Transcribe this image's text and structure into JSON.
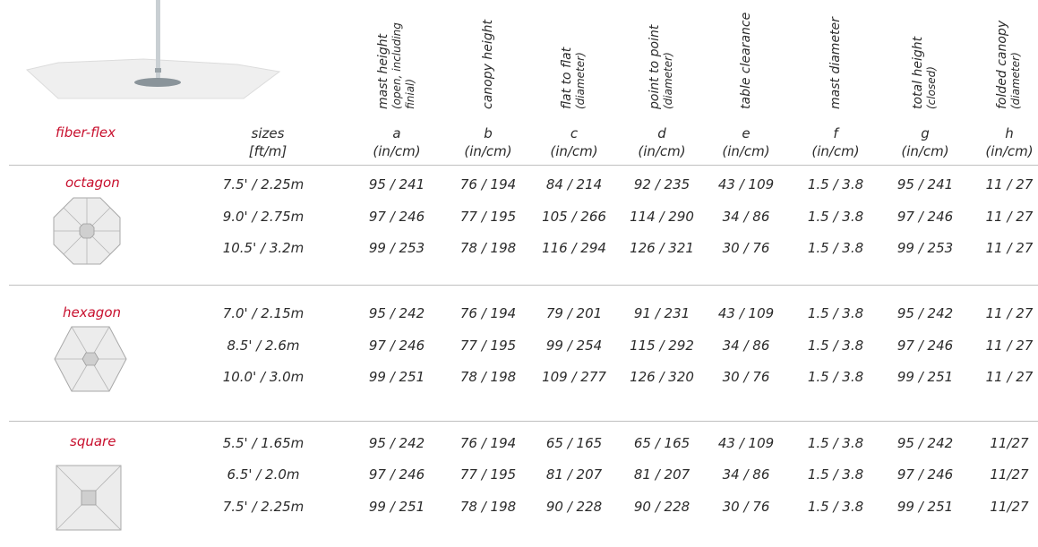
{
  "brand": "fiber-flex",
  "sizes_header": {
    "line1": "sizes",
    "line2": "[ft/m]"
  },
  "columns": [
    {
      "letter": "a",
      "unit": "(in/cm)",
      "name": "mast height",
      "sub1": "(open, including",
      "sub2": "finial)"
    },
    {
      "letter": "b",
      "unit": "(in/cm)",
      "name": "canopy height",
      "sub1": "",
      "sub2": ""
    },
    {
      "letter": "c",
      "unit": "(in/cm)",
      "name": "flat to flat",
      "sub1": "(diameter)",
      "sub2": ""
    },
    {
      "letter": "d",
      "unit": "(in/cm)",
      "name": "point to point",
      "sub1": "(diameter)",
      "sub2": ""
    },
    {
      "letter": "e",
      "unit": "(in/cm)",
      "name": "table clearance",
      "sub1": "",
      "sub2": ""
    },
    {
      "letter": "f",
      "unit": "(in/cm)",
      "name": "mast diameter",
      "sub1": "",
      "sub2": ""
    },
    {
      "letter": "g",
      "unit": "(in/cm)",
      "name": "total height",
      "sub1": "(closed)",
      "sub2": ""
    },
    {
      "letter": "h",
      "unit": "(in/cm)",
      "name": "folded canopy",
      "sub1": "(diameter)",
      "sub2": ""
    }
  ],
  "groups": [
    {
      "name": "octagon",
      "rows": [
        {
          "size": "7.5' / 2.25m",
          "values": [
            "95 / 241",
            "76 / 194",
            "84 / 214",
            "92 / 235",
            "43 / 109",
            "1.5 / 3.8",
            "95 / 241",
            "11 / 27"
          ]
        },
        {
          "size": "9.0' / 2.75m",
          "values": [
            "97 / 246",
            "77 / 195",
            "105 / 266",
            "114 / 290",
            "34 / 86",
            "1.5 / 3.8",
            "97 / 246",
            "11 / 27"
          ]
        },
        {
          "size": "10.5' / 3.2m",
          "values": [
            "99 / 253",
            "78 / 198",
            "116 / 294",
            "126 / 321",
            "30 / 76",
            "1.5 / 3.8",
            "99 / 253",
            "11 / 27"
          ]
        }
      ]
    },
    {
      "name": "hexagon",
      "rows": [
        {
          "size": "7.0' / 2.15m",
          "values": [
            "95 / 242",
            "76 / 194",
            "79 / 201",
            "91 / 231",
            "43 / 109",
            "1.5 / 3.8",
            "95 / 242",
            "11 / 27"
          ]
        },
        {
          "size": "8.5' / 2.6m",
          "values": [
            "97 / 246",
            "77 / 195",
            "99 / 254",
            "115 / 292",
            "34 / 86",
            "1.5 / 3.8",
            "97 / 246",
            "11 / 27"
          ]
        },
        {
          "size": "10.0' / 3.0m",
          "values": [
            "99 / 251",
            "78 / 198",
            "109 / 277",
            "126 / 320",
            "30 / 76",
            "1.5 / 3.8",
            "99 / 251",
            "11 / 27"
          ]
        }
      ]
    },
    {
      "name": "square",
      "rows": [
        {
          "size": "5.5' / 1.65m",
          "values": [
            "95 / 242",
            "76 / 194",
            "65 / 165",
            "65 / 165",
            "43 / 109",
            "1.5 / 3.8",
            "95 / 242",
            "11/27"
          ]
        },
        {
          "size": "6.5' / 2.0m",
          "values": [
            "97 / 246",
            "77 / 195",
            "81 / 207",
            "81 / 207",
            "34 / 86",
            "1.5 / 3.8",
            "97 / 246",
            "11/27"
          ]
        },
        {
          "size": "7.5' / 2.25m",
          "values": [
            "99 / 251",
            "78 / 198",
            "90 / 228",
            "90 / 228",
            "30 / 76",
            "1.5 / 3.8",
            "99 / 251",
            "11/27"
          ]
        }
      ]
    }
  ],
  "colors": {
    "accent": "#c8102e",
    "text": "#2b2b2b",
    "rule": "#bfbfbf",
    "shape_fill": "#ececec",
    "shape_stroke": "#a8a8a8"
  }
}
